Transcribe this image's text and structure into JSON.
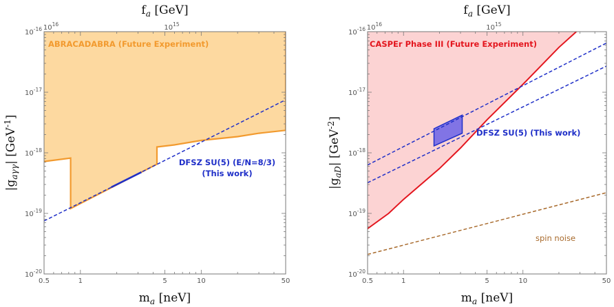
{
  "chart_data": [
    {
      "type": "line",
      "panel": "left",
      "xlabel": "m_a [neV]",
      "ylabel": "|g_aγγ| [GeV^-1]",
      "top_xlabel": "f_a [GeV]",
      "xscale": "log",
      "yscale": "log",
      "xlim": [
        0.5,
        50
      ],
      "ylim": [
        1e-20,
        1e-16
      ],
      "x_ticks": [
        "0.5",
        "1",
        "5",
        "10",
        "50"
      ],
      "y_ticks": [
        "10^-20",
        "10^-19",
        "10^-18",
        "10^-17",
        "10^-16"
      ],
      "top_ticks": [
        "10^16",
        "10^15"
      ],
      "top_tick_values_ma": [
        0.57,
        5.7
      ],
      "colors": {
        "abracadabra_fill": "#fdd9a0",
        "abracadabra_line": "#f29a2e",
        "dfsz": "#1f2fc8"
      },
      "regions": [
        {
          "name": "ABRACADABRA (Future Experiment)",
          "boundary": [
            [
              0.5,
              7.2e-19
            ],
            [
              0.83,
              8.2e-19
            ],
            [
              0.83,
              1.2e-19
            ],
            [
              4.3,
              6.5e-19
            ],
            [
              4.3,
              1.25e-18
            ],
            [
              6,
              1.35e-18
            ],
            [
              10,
              1.6e-18
            ],
            [
              20,
              1.85e-18
            ],
            [
              30,
              2.1e-18
            ],
            [
              50,
              2.35e-18
            ],
            [
              50,
              1e-16
            ]
          ]
        }
      ],
      "series": [
        {
          "name": "DFSZ SU(5) (E/N=8/3)",
          "style": "dashed",
          "x": [
            0.5,
            50
          ],
          "y": [
            7.5e-20,
            7.5e-18
          ]
        },
        {
          "name": "",
          "style": "solid",
          "x": [
            1.8,
            3.2
          ],
          "y": [
            2.7e-19,
            4.8e-19
          ]
        }
      ],
      "annotations": [
        {
          "lines": [
            "DFSZ SU(5) (E/N=8/3)",
            "(This work)"
          ]
        }
      ]
    },
    {
      "type": "line",
      "panel": "right",
      "xlabel": "m_a [neV]",
      "ylabel": "|g_aD| [GeV^-2]",
      "top_xlabel": "f_a [GeV]",
      "xscale": "log",
      "yscale": "log",
      "xlim": [
        0.5,
        50
      ],
      "ylim": [
        1e-20,
        1e-16
      ],
      "x_ticks": [
        "0.5",
        "1",
        "5",
        "10",
        "50"
      ],
      "y_ticks": [
        "10^-20",
        "10^-19",
        "10^-18",
        "10^-17",
        "10^-16"
      ],
      "top_ticks": [
        "10^16",
        "10^15"
      ],
      "top_tick_values_ma": [
        0.57,
        5.7
      ],
      "colors": {
        "casper_fill": "#fcd3d3",
        "casper_line": "#e3161e",
        "dfsz": "#1f2fc8",
        "dfsz_band": "#6b63e8",
        "spin_noise": "#a86a2c"
      },
      "regions": [
        {
          "name": "CASPEr Phase III (Future Experiment)",
          "boundary": [
            [
              0.5,
              5.6e-20
            ],
            [
              0.75,
              1e-19
            ],
            [
              1,
              1.7e-19
            ],
            [
              2,
              5.5e-19
            ],
            [
              3,
              1.2e-18
            ],
            [
              5,
              3.5e-18
            ],
            [
              10,
              1.35e-17
            ],
            [
              20,
              5.5e-17
            ],
            [
              28,
              1e-16
            ]
          ]
        }
      ],
      "series": [
        {
          "name": "DFSZ upper",
          "style": "dashed",
          "x": [
            0.5,
            50
          ],
          "y": [
            6.3e-19,
            6.5e-17
          ]
        },
        {
          "name": "DFSZ lower",
          "style": "dashed",
          "x": [
            0.5,
            50
          ],
          "y": [
            3.2e-19,
            2.7e-17
          ]
        },
        {
          "name": "spin noise",
          "style": "dashed",
          "x": [
            0.5,
            50
          ],
          "y": [
            2.1e-20,
            2.2e-19
          ]
        }
      ],
      "band": {
        "name": "DFSZ SU(5) (This work)",
        "x": [
          1.8,
          3.1
        ],
        "upper": [
          2.5e-18,
          4.2e-18
        ],
        "lower": [
          1.3e-18,
          2.1e-18
        ]
      },
      "annotations": [
        {
          "lines": [
            "DFSZ SU(5) (This work)"
          ]
        },
        {
          "lines": [
            "spin noise"
          ]
        }
      ]
    }
  ]
}
